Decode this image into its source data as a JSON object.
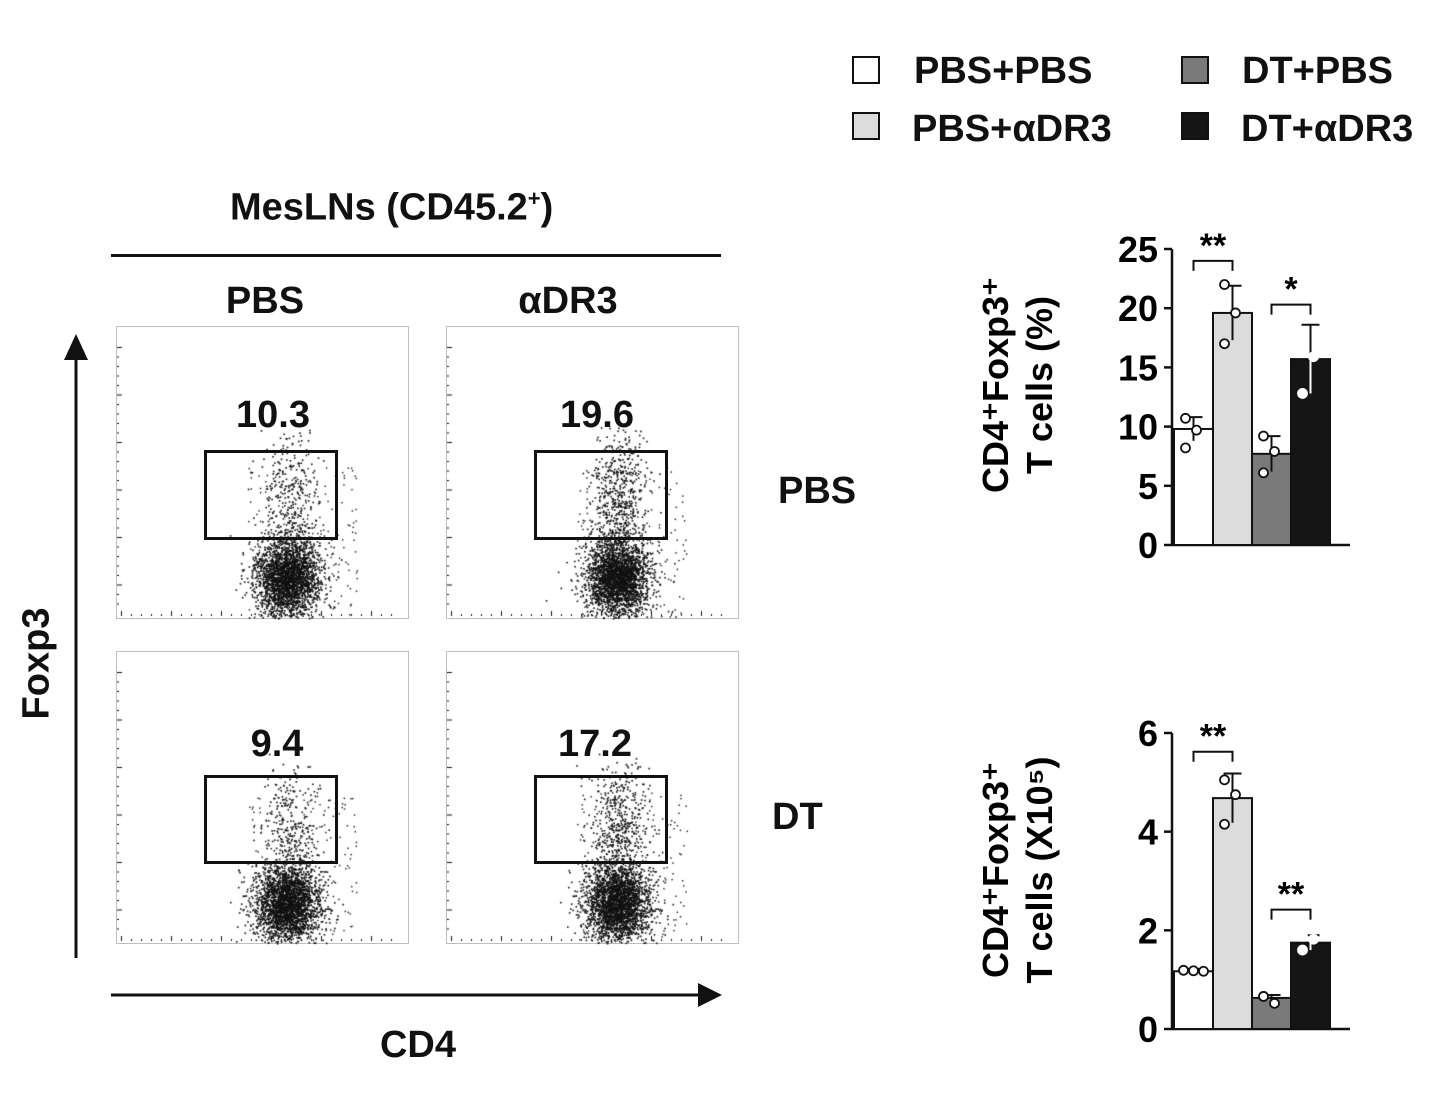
{
  "legend": {
    "items": [
      {
        "label": "PBS+PBS",
        "color": "#ffffff"
      },
      {
        "label": "DT+PBS",
        "color": "#7a7a7a"
      },
      {
        "label": "PBS+αDR3",
        "color": "#dcdcdc"
      },
      {
        "label": "DT+αDR3",
        "color": "#151515"
      }
    ]
  },
  "flow": {
    "title": "MesLNs (CD45.2",
    "title_sup": "+",
    "title_close": ")",
    "col_labels": [
      "PBS",
      "αDR3"
    ],
    "row_labels": [
      "PBS",
      "DT"
    ],
    "y_axis_label": "Foxp3",
    "x_axis_label": "CD4",
    "gate_values": [
      "10.3",
      "19.6",
      "9.4",
      "17.2"
    ]
  },
  "chart_data": [
    {
      "type": "bar",
      "ylabel_line1": "CD4⁺Foxp3⁺",
      "ylabel_line2": "T cells (%)",
      "ylim": [
        0,
        25
      ],
      "yticks": [
        0,
        5,
        10,
        15,
        20,
        25
      ],
      "series": [
        {
          "name": "PBS+PBS",
          "color": "#ffffff",
          "value": 9.8,
          "err": 1.0,
          "points": [
            10.7,
            9.7,
            8.2
          ]
        },
        {
          "name": "PBS+αDR3",
          "color": "#dcdcdc",
          "value": 19.6,
          "err": 2.3,
          "points": [
            22.0,
            19.6,
            17.0
          ]
        },
        {
          "name": "DT+PBS",
          "color": "#7a7a7a",
          "value": 7.7,
          "err": 1.5,
          "points": [
            9.2,
            7.9,
            6.1
          ]
        },
        {
          "name": "DT+αDR3",
          "color": "#151515",
          "value": 15.7,
          "err": 2.9,
          "points": [
            17.3,
            15.9,
            12.8
          ]
        }
      ],
      "significance": [
        {
          "from": 0,
          "to": 1,
          "label": "**",
          "at": 24.0
        },
        {
          "from": 2,
          "to": 3,
          "label": "*",
          "at": 20.3
        }
      ]
    },
    {
      "type": "bar",
      "ylabel_line1": "CD4⁺Foxp3⁺",
      "ylabel_line2": "T cells (X10⁵)",
      "ylim": [
        0,
        6
      ],
      "yticks": [
        0,
        2,
        4,
        6
      ],
      "series": [
        {
          "name": "PBS+PBS",
          "color": "#ffffff",
          "value": 1.17,
          "err": 0.05,
          "points": [
            1.19,
            1.18,
            1.17
          ]
        },
        {
          "name": "PBS+αDR3",
          "color": "#dcdcdc",
          "value": 4.68,
          "err": 0.5,
          "points": [
            5.05,
            4.75,
            4.15
          ]
        },
        {
          "name": "DT+PBS",
          "color": "#7a7a7a",
          "value": 0.63,
          "err": 0.06,
          "points": [
            0.66,
            0.52,
            0.66
          ]
        },
        {
          "name": "DT+αDR3",
          "color": "#151515",
          "value": 1.75,
          "err": 0.15,
          "points": [
            1.88,
            1.82,
            1.6
          ]
        }
      ],
      "significance": [
        {
          "from": 0,
          "to": 1,
          "label": "**",
          "at": 5.62
        },
        {
          "from": 2,
          "to": 3,
          "label": "**",
          "at": 2.42
        }
      ]
    }
  ]
}
